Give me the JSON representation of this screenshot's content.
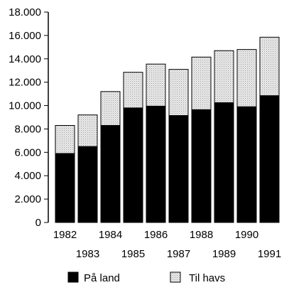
{
  "chart_data": {
    "type": "bar",
    "stacked": true,
    "categories": [
      "1982",
      "1983",
      "1984",
      "1985",
      "1986",
      "1987",
      "1988",
      "1989",
      "1990",
      "1991"
    ],
    "series": [
      {
        "name": "På land",
        "values": [
          5900,
          6500,
          8300,
          9800,
          9950,
          9150,
          9650,
          10250,
          9900,
          10850
        ]
      },
      {
        "name": "Til havs",
        "values": [
          2400,
          2700,
          2900,
          3050,
          3600,
          3950,
          4500,
          4450,
          4900,
          5000
        ]
      }
    ],
    "totals": [
      8300,
      9200,
      11200,
      12850,
      13550,
      13100,
      14150,
      14700,
      14800,
      15850
    ],
    "ylim": [
      0,
      18000
    ],
    "y_ticks": [
      "0",
      "2.000",
      "4.000",
      "6.000",
      "8.000",
      "10.000",
      "12.000",
      "14.000",
      "16.000",
      "18.000"
    ],
    "y_tick_values": [
      0,
      2000,
      4000,
      6000,
      8000,
      10000,
      12000,
      14000,
      16000,
      18000
    ],
    "title": "",
    "xlabel": "",
    "ylabel": "",
    "grid": false,
    "legend_position": "bottom",
    "colors": {
      "pa_land": "#000000",
      "til_havs": "#d6d6d6",
      "axis": "#000000"
    }
  }
}
